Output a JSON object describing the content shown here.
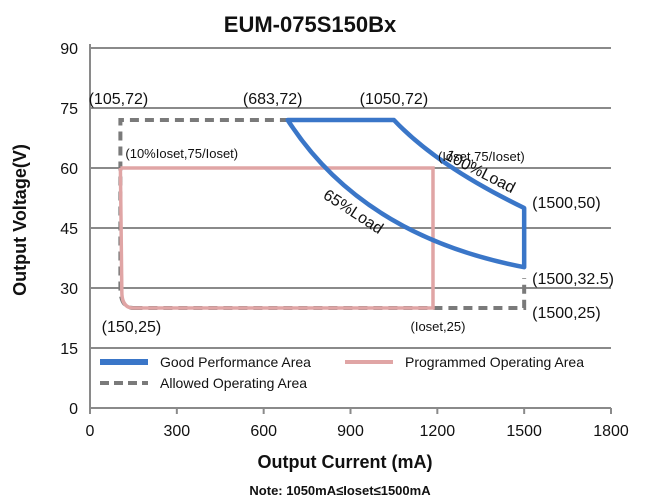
{
  "chart_data": {
    "type": "line",
    "title": "EUM-075S150Bx",
    "xlabel": "Output Current (mA)",
    "ylabel": "Output Voltage(V)",
    "xlim": [
      0,
      1800
    ],
    "ylim": [
      0,
      90
    ],
    "x_ticks": [
      "0",
      "300",
      "600",
      "900",
      "1200",
      "1500",
      "1800"
    ],
    "y_ticks": [
      "0",
      "15",
      "30",
      "45",
      "60",
      "75",
      "90"
    ],
    "grid": "horizontal",
    "legend_position": "bottom-inside",
    "series": [
      {
        "name": "Good Performance Area",
        "color": "#3a76c8",
        "style": "solid",
        "points": [
          [
            683,
            72
          ],
          [
            1050,
            72
          ],
          [
            1200,
            60.7
          ],
          [
            1500,
            50
          ],
          [
            1500,
            35.2
          ],
          [
            1200,
            40
          ],
          [
            683,
            72
          ]
        ]
      },
      {
        "name": "Programmed Operating Area",
        "color": "#e0a5a5",
        "style": "solid",
        "points": [
          [
            105,
            60
          ],
          [
            1185,
            60
          ],
          [
            1185,
            25
          ],
          [
            150,
            25
          ],
          [
            110,
            29
          ],
          [
            105,
            60
          ]
        ]
      },
      {
        "name": "Allowed Operating Area",
        "color": "#7a7a7a",
        "style": "dashed",
        "points": [
          [
            150,
            25
          ],
          [
            1500,
            25
          ],
          [
            1500,
            32.5
          ],
          [
            1500,
            50
          ],
          [
            1050,
            72
          ],
          [
            683,
            72
          ],
          [
            105,
            72
          ],
          [
            105,
            30
          ],
          [
            150,
            25
          ]
        ]
      }
    ],
    "annotations": [
      {
        "text": "(105,72)",
        "x": 105,
        "y": 72
      },
      {
        "text": "(683,72)",
        "x": 683,
        "y": 72
      },
      {
        "text": "(1050,72)",
        "x": 1050,
        "y": 72
      },
      {
        "text": "(10%Ioset,75/Ioset)",
        "x": 105,
        "y": 60
      },
      {
        "text": "(Ioset,75/Ioset)",
        "x": 1185,
        "y": 60
      },
      {
        "text": "100%Load",
        "x": 1350,
        "y": 56
      },
      {
        "text": "65%Load",
        "x": 900,
        "y": 48
      },
      {
        "text": "(1500,50)",
        "x": 1500,
        "y": 50
      },
      {
        "text": "(1500,32.5)",
        "x": 1500,
        "y": 32.5
      },
      {
        "text": "(1500,25)",
        "x": 1500,
        "y": 25
      },
      {
        "text": "(150,25)",
        "x": 150,
        "y": 25
      },
      {
        "text": "(Ioset,25)",
        "x": 1185,
        "y": 25
      }
    ],
    "note": "Note:  1050mA≤Ioset≤1500mA"
  }
}
